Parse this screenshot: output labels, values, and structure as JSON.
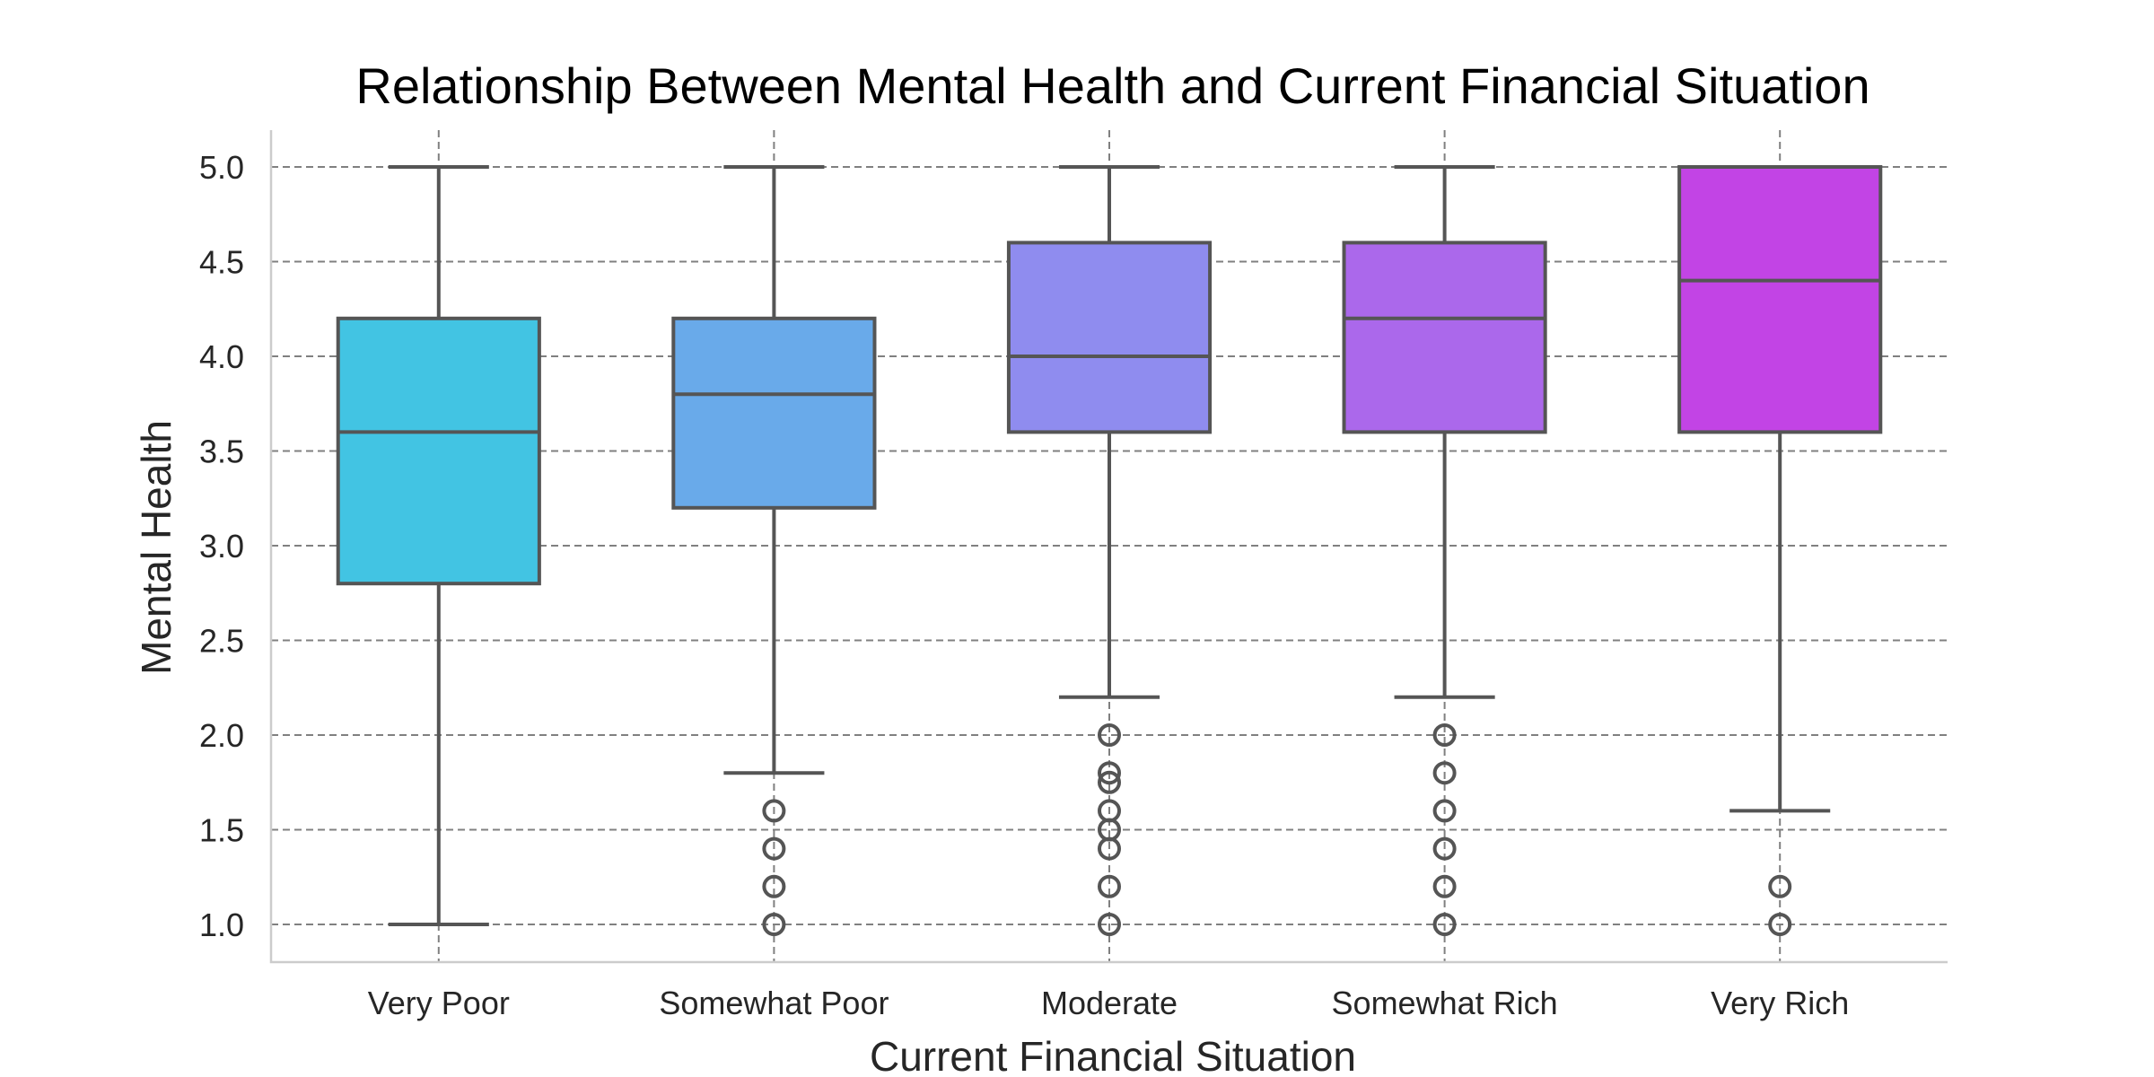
{
  "chart_data": {
    "type": "box",
    "title": "Relationship Between Mental Health and Current Financial Situation",
    "xlabel": "Current Financial Situation",
    "ylabel": "Mental Health",
    "ylim": [
      0.8,
      5.0
    ],
    "yticks": [
      "1.0",
      "1.5",
      "2.0",
      "2.5",
      "3.0",
      "3.5",
      "4.0",
      "4.5",
      "5.0"
    ],
    "grid": true,
    "categories": [
      "Very Poor",
      "Somewhat Poor",
      "Moderate",
      "Somewhat Rich",
      "Very Rich"
    ],
    "colors": [
      "#42c4e3",
      "#69aaea",
      "#8f8cef",
      "#ab68eb",
      "#c244e5"
    ],
    "boxes": [
      {
        "category": "Very Poor",
        "whisker_low": 1.0,
        "q1": 2.8,
        "median": 3.6,
        "q3": 4.2,
        "whisker_high": 5.0,
        "outliers": []
      },
      {
        "category": "Somewhat Poor",
        "whisker_low": 1.8,
        "q1": 3.2,
        "median": 3.8,
        "q3": 4.2,
        "whisker_high": 5.0,
        "outliers": [
          1.6,
          1.4,
          1.2,
          1.0
        ]
      },
      {
        "category": "Moderate",
        "whisker_low": 2.2,
        "q1": 3.6,
        "median": 4.0,
        "q3": 4.6,
        "whisker_high": 5.0,
        "outliers": [
          2.0,
          1.8,
          1.75,
          1.6,
          1.5,
          1.4,
          1.2,
          1.0
        ]
      },
      {
        "category": "Somewhat Rich",
        "whisker_low": 2.2,
        "q1": 3.6,
        "median": 4.2,
        "q3": 4.6,
        "whisker_high": 5.0,
        "outliers": [
          2.0,
          1.8,
          1.6,
          1.4,
          1.2,
          1.0
        ]
      },
      {
        "category": "Very Rich",
        "whisker_low": 1.6,
        "q1": 3.6,
        "median": 4.4,
        "q3": 5.0,
        "whisker_high": 5.0,
        "outliers": [
          1.2,
          1.0
        ]
      }
    ]
  }
}
